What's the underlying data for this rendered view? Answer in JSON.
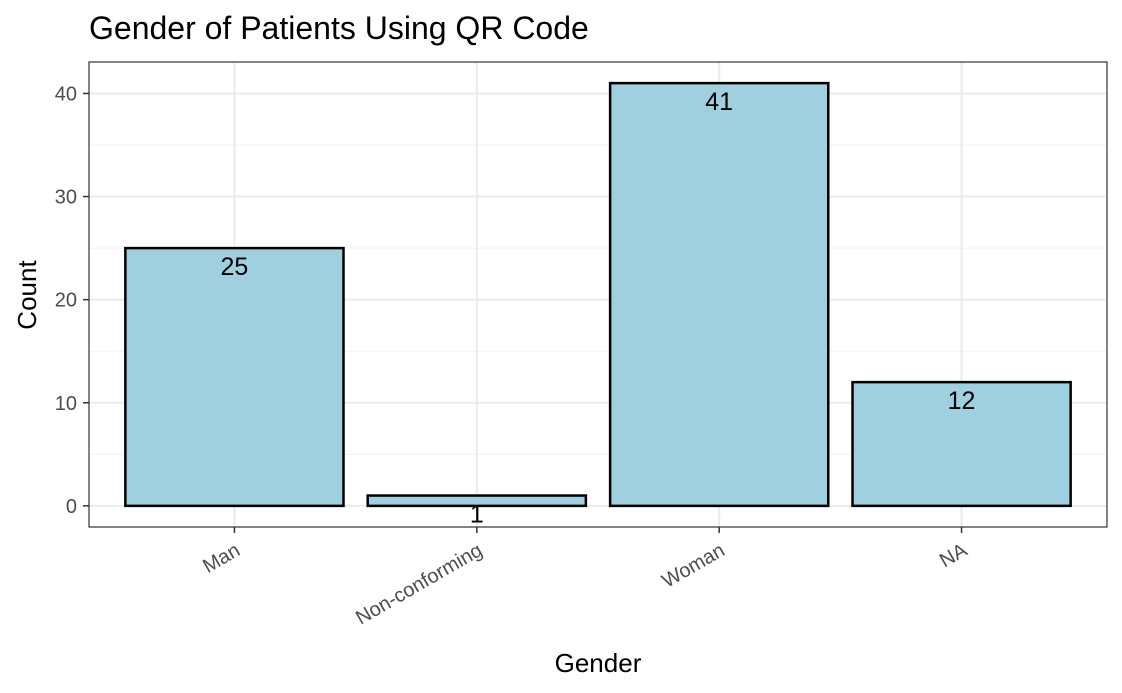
{
  "chart_data": {
    "type": "bar",
    "title": "Gender of Patients Using QR Code",
    "xlabel": "Gender",
    "ylabel": "Count",
    "categories": [
      "Man",
      "Non-conforming",
      "Woman",
      "NA"
    ],
    "values": [
      25,
      1,
      41,
      12
    ],
    "ylim": [
      -2.05,
      43.05
    ],
    "yticks": [
      0,
      10,
      20,
      30,
      40
    ],
    "bar_fill": "#a0cfe0",
    "bar_stroke": "#000000",
    "grid": true,
    "legend": "none"
  }
}
